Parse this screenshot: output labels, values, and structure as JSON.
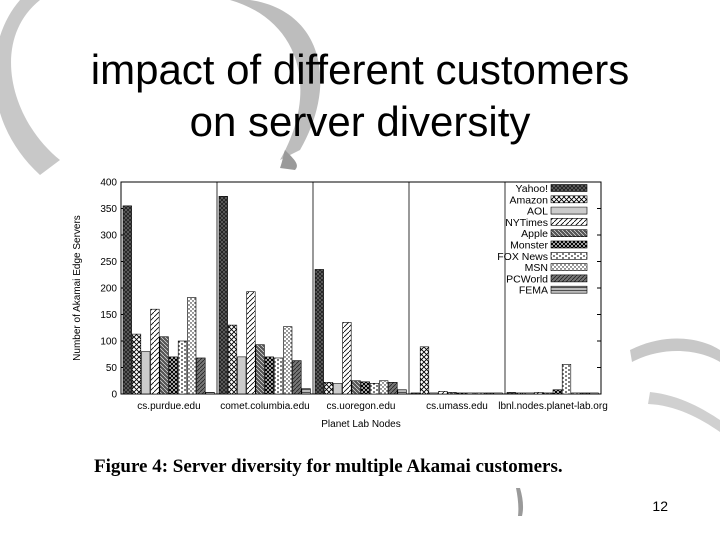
{
  "slide": {
    "title_line1": "impact of different customers",
    "title_line2": "on server diversity",
    "caption": "Figure 4: Server diversity for multiple Akamai customers.",
    "page_number": "12"
  },
  "chart_data": {
    "type": "bar",
    "title": "",
    "xlabel": "Planet Lab Nodes",
    "ylabel": "Number of Akamai Edge Servers",
    "ylim": [
      0,
      400
    ],
    "yticks": [
      0,
      50,
      100,
      150,
      200,
      250,
      300,
      350,
      400
    ],
    "legend_position": "top-right",
    "grid": "vertical dividers between groups",
    "categories": [
      "cs.purdue.edu",
      "comet.columbia.edu",
      "cs.uoregon.edu",
      "cs.umass.edu",
      "lbnl.nodes.planet-lab.org"
    ],
    "series": [
      {
        "name": "Yahoo!",
        "values": [
          355,
          373,
          235,
          2,
          3
        ]
      },
      {
        "name": "Amazon",
        "values": [
          113,
          130,
          22,
          89,
          2
        ]
      },
      {
        "name": "AOL",
        "values": [
          80,
          70,
          20,
          2,
          2
        ]
      },
      {
        "name": "NYTimes",
        "values": [
          160,
          193,
          135,
          5,
          3
        ]
      },
      {
        "name": "Apple",
        "values": [
          108,
          93,
          25,
          3,
          2
        ]
      },
      {
        "name": "Monster",
        "values": [
          70,
          70,
          23,
          2,
          8
        ]
      },
      {
        "name": "FOX News",
        "values": [
          100,
          68,
          20,
          2,
          56
        ]
      },
      {
        "name": "MSN",
        "values": [
          182,
          127,
          25,
          2,
          2
        ]
      },
      {
        "name": "PCWorld",
        "values": [
          68,
          63,
          22,
          2,
          2
        ]
      },
      {
        "name": "FEMA",
        "values": [
          3,
          10,
          8,
          2,
          2
        ]
      }
    ]
  }
}
